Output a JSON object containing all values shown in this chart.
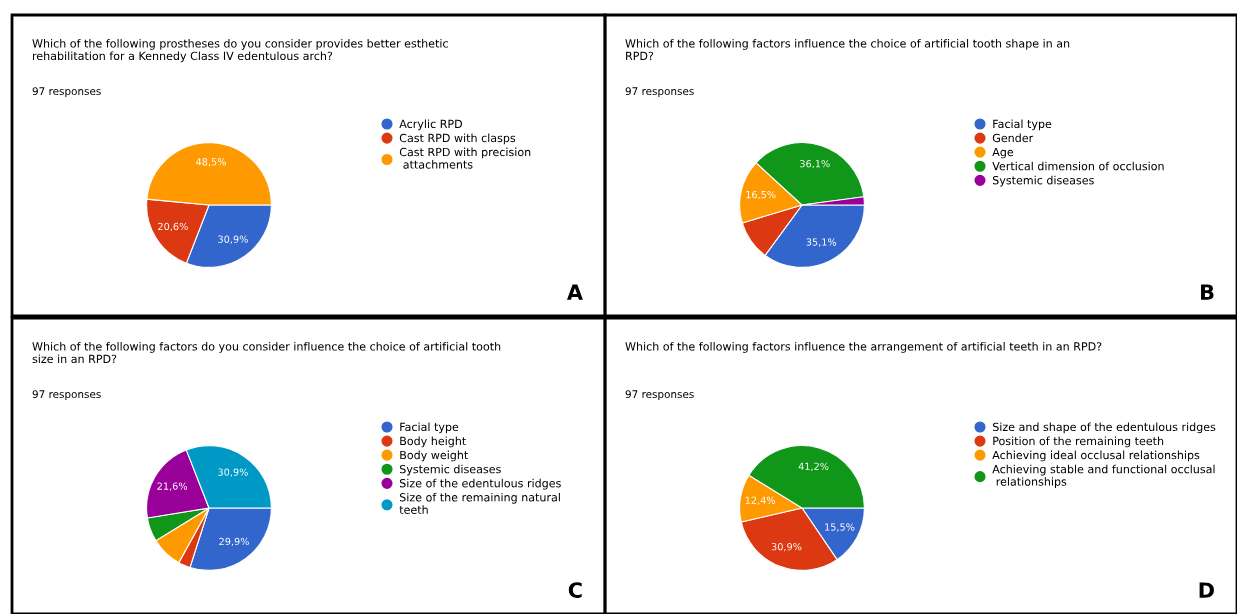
{
  "chart_data": [
    {
      "type": "pie",
      "title": "Which of the following prostheses do you consider provides better esthetic\nrehabilitation for a Kennedy Class IV edentulous arch?",
      "subtitle": "97 responses",
      "categories": [
        "Acrylic RPD",
        "Cast RPD with clasps",
        "Cast RPD with precision\n attachments"
      ],
      "values": [
        30.9,
        20.6,
        48.5
      ],
      "value_labels": [
        "30,9%",
        "20,6%",
        "48,5%"
      ],
      "colors": [
        "#3366cc",
        "#dc3912",
        "#ff9900"
      ],
      "legend": "right",
      "annotations": [
        "A"
      ]
    },
    {
      "type": "pie",
      "title": "Which of the following factors influence the choice of artificial tooth shape in an\nRPD?",
      "subtitle": "97 responses",
      "categories": [
        "Facial type",
        "Gender",
        "Age",
        "Vertical dimension of occlusion",
        "Systemic diseases"
      ],
      "values": [
        35.1,
        10.3,
        16.5,
        36.1,
        2.1
      ],
      "value_labels": [
        "35,1%",
        null,
        "16,5%",
        "36,1%",
        null
      ],
      "colors": [
        "#3366cc",
        "#dc3912",
        "#ff9900",
        "#109618",
        "#990099"
      ],
      "legend": "right",
      "annotations": [
        "B"
      ]
    },
    {
      "type": "pie",
      "title": "Which of the following factors do you consider influence the choice of artificial tooth\nsize in an RPD?",
      "subtitle": "97 responses",
      "categories": [
        "Facial type",
        "Body height",
        "Body weight",
        "Systemic diseases",
        "Size of the edentulous ridges",
        "Size of the remaining natural\nteeth"
      ],
      "values": [
        29.9,
        3.1,
        8.2,
        6.2,
        21.6,
        30.9
      ],
      "value_labels": [
        "29,9%",
        null,
        null,
        null,
        "21,6%",
        "30,9%"
      ],
      "colors": [
        "#3366cc",
        "#dc3912",
        "#ff9900",
        "#109618",
        "#990099",
        "#0099c6"
      ],
      "legend": "right",
      "annotations": [
        "C"
      ]
    },
    {
      "type": "pie",
      "title": "Which of the following factors influence the arrangement of artificial teeth in an RPD?",
      "subtitle": "97 responses",
      "categories": [
        "Size and shape of the edentulous ridges",
        "Position of the remaining teeth",
        "Achieving ideal occlusal relationships",
        "Achieving stable and functional occlusal\n relationships"
      ],
      "values": [
        15.5,
        30.9,
        12.4,
        41.2
      ],
      "value_labels": [
        "15,5%",
        "30,9%",
        "12,4%",
        "41,2%"
      ],
      "colors": [
        "#3366cc",
        "#dc3912",
        "#ff9900",
        "#109618"
      ],
      "legend": "right",
      "annotations": [
        "D"
      ]
    }
  ]
}
